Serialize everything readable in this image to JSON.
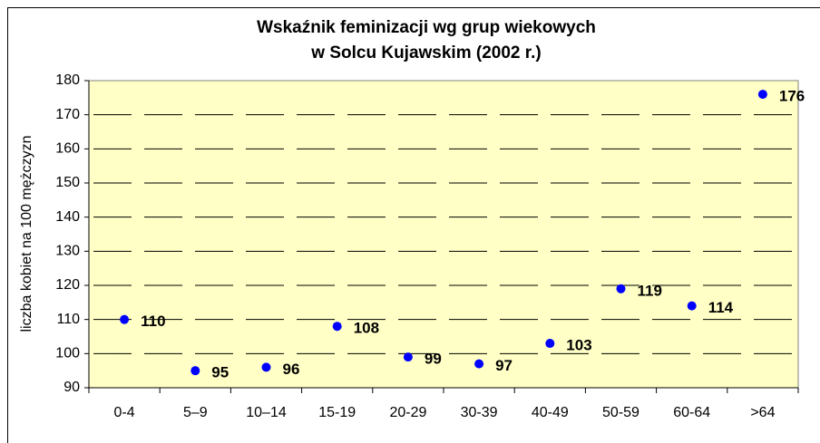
{
  "chart_data": {
    "type": "scatter",
    "title": "Wskaźnik feminizacji wg grup wiekowych",
    "subtitle": "w Solcu Kujawskim (2002 r.)",
    "y_label": "liczba kobiet na 100 mężczyzn",
    "categories": [
      "0-4",
      "5–9",
      "10–14",
      "15-19",
      "20-29",
      "30-39",
      "40-49",
      "50-59",
      "60-64",
      ">64"
    ],
    "values": [
      110,
      95,
      96,
      108,
      99,
      97,
      103,
      119,
      114,
      176
    ],
    "color": "#0000ff",
    "ylim": [
      90,
      180
    ],
    "yticks": [
      90,
      100,
      110,
      120,
      130,
      140,
      150,
      160,
      170,
      180
    ],
    "grid": true
  }
}
